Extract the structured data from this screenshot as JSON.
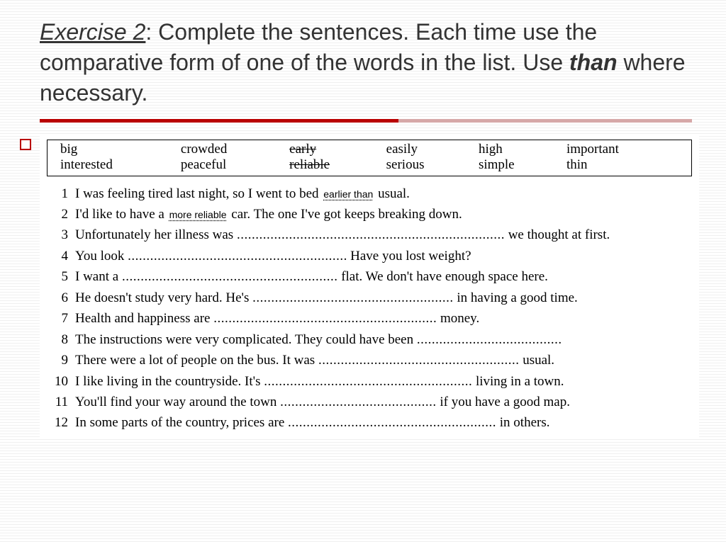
{
  "title": {
    "exercise_label": "Exercise 2",
    "part1": ": Complete the sentences. Each time use the comparative form of one of the words in the list. Use ",
    "than": "than",
    "part2": " where necessary."
  },
  "colors": {
    "divider_primary": "#b90000",
    "divider_secondary": "#d6a8a8",
    "text": "#333333",
    "background": "#ffffff"
  },
  "wordbox": {
    "row1": [
      "big",
      "crowded",
      "early",
      "easily",
      "high",
      "important"
    ],
    "row2": [
      "interested",
      "peaceful",
      "reliable",
      "serious",
      "simple",
      "thin"
    ],
    "struck": [
      "early",
      "reliable"
    ]
  },
  "answers": {
    "q1": "earlier than",
    "q2": "more reliable"
  },
  "questions": [
    {
      "n": "1",
      "pre": "I was feeling tired last night, so I went to bed ",
      "ans_key": "answers.q1",
      "post": " usual."
    },
    {
      "n": "2",
      "pre": "I'd like to have a ",
      "ans_key": "answers.q2",
      "post": " car. The one I've got keeps breaking down."
    },
    {
      "n": "3",
      "pre": "Unfortunately her illness was ",
      "dots": 72,
      "post": " we thought at first."
    },
    {
      "n": "4",
      "pre": "You look ",
      "dots": 58,
      "post": ".   Have you lost weight?"
    },
    {
      "n": "5",
      "pre": "I want a ",
      "dots": 58,
      "post": " flat. We don't have enough space here."
    },
    {
      "n": "6",
      "pre": "He doesn't study very hard. He's ",
      "dots": 54,
      "post": " in having a good time."
    },
    {
      "n": "7",
      "pre": "Health and happiness are ",
      "dots": 60,
      "post": " money."
    },
    {
      "n": "8",
      "pre": "The instructions were very complicated. They could have been ",
      "dots": 38,
      "post": "."
    },
    {
      "n": "9",
      "pre": "There were a lot of people on the bus. It was ",
      "dots": 54,
      "post": " usual."
    },
    {
      "n": "10",
      "pre": "I like living in the countryside. It's ",
      "dots": 56,
      "post": " living in a town."
    },
    {
      "n": "11",
      "pre": "You'll find your way around the town ",
      "dots": 42,
      "post": " if you have a good map."
    },
    {
      "n": "12",
      "pre": "In some parts of the country, prices are ",
      "dots": 56,
      "post": " in others."
    }
  ]
}
